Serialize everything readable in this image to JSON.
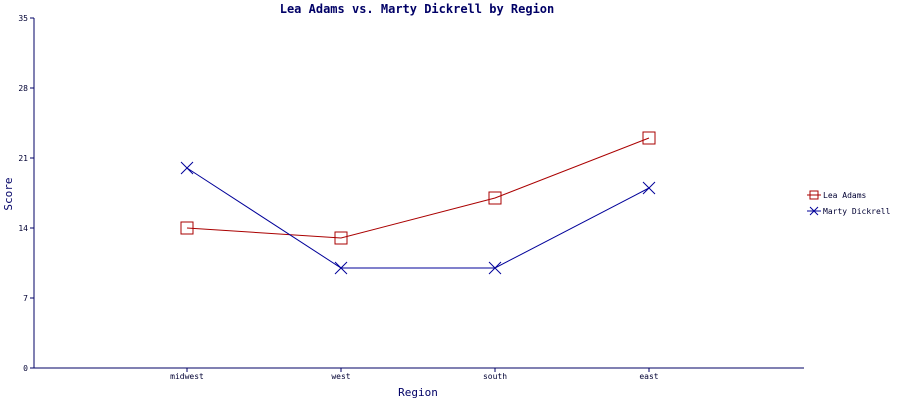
{
  "chart_data": {
    "type": "line",
    "title": "Lea Adams vs. Marty Dickrell by Region",
    "xlabel": "Region",
    "ylabel": "Score",
    "categories": [
      "midwest",
      "west",
      "south",
      "east"
    ],
    "ylim": [
      0,
      35
    ],
    "yticks": [
      0,
      7,
      14,
      21,
      28,
      35
    ],
    "grid": false,
    "legend_position": "right",
    "series": [
      {
        "name": "Lea Adams",
        "values": [
          14,
          13,
          17,
          23
        ],
        "color": "#aa0000",
        "marker": "square"
      },
      {
        "name": "Marty Dickrell",
        "values": [
          20,
          10,
          10,
          18
        ],
        "color": "#000099",
        "marker": "x"
      }
    ]
  }
}
